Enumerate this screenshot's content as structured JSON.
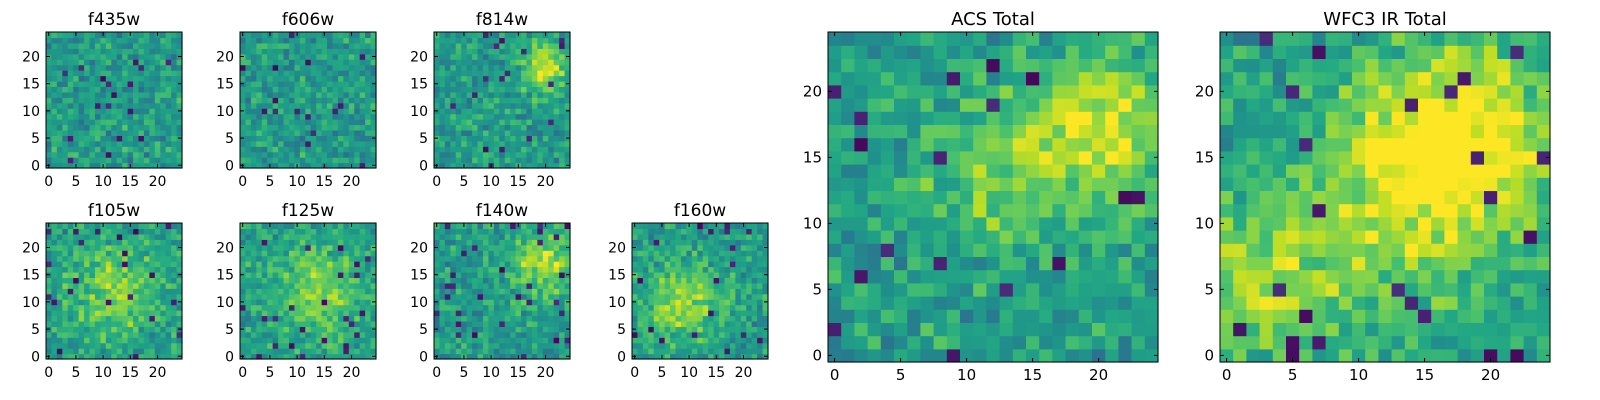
{
  "colormap": "viridis",
  "colors": {
    "frame": "#000000",
    "background": "#ffffff"
  },
  "chart_data": [
    {
      "type": "heatmap",
      "title": "f435w",
      "grid": [
        25,
        25
      ],
      "xticks": [
        "0",
        "5",
        "10",
        "15",
        "20"
      ],
      "yticks": [
        "0",
        "5",
        "10",
        "15",
        "20"
      ],
      "xlim": [
        0,
        25
      ],
      "ylim": [
        0,
        25
      ],
      "seed": 11,
      "features": []
    },
    {
      "type": "heatmap",
      "title": "f606w",
      "grid": [
        25,
        25
      ],
      "xticks": [
        "0",
        "5",
        "10",
        "15",
        "20"
      ],
      "yticks": [
        "0",
        "5",
        "10",
        "15",
        "20"
      ],
      "xlim": [
        0,
        25
      ],
      "ylim": [
        0,
        25
      ],
      "seed": 23,
      "features": []
    },
    {
      "type": "heatmap",
      "title": "f814w",
      "grid": [
        25,
        25
      ],
      "xticks": [
        "0",
        "5",
        "10",
        "15",
        "20"
      ],
      "yticks": [
        "0",
        "5",
        "10",
        "15",
        "20"
      ],
      "xlim": [
        0,
        25
      ],
      "ylim": [
        0,
        25
      ],
      "seed": 37,
      "features": [
        {
          "x": 20,
          "y": 18,
          "amp": 0.4,
          "r": 3
        }
      ]
    },
    {
      "type": "heatmap",
      "title": "f105w",
      "grid": [
        25,
        25
      ],
      "xticks": [
        "0",
        "5",
        "10",
        "15",
        "20"
      ],
      "yticks": [
        "0",
        "5",
        "10",
        "15",
        "20"
      ],
      "xlim": [
        0,
        25
      ],
      "ylim": [
        0,
        25
      ],
      "seed": 41,
      "features": [
        {
          "x": 12,
          "y": 12,
          "amp": 0.25,
          "r": 6
        }
      ]
    },
    {
      "type": "heatmap",
      "title": "f125w",
      "grid": [
        25,
        25
      ],
      "xticks": [
        "0",
        "5",
        "10",
        "15",
        "20"
      ],
      "yticks": [
        "0",
        "5",
        "10",
        "15",
        "20"
      ],
      "xlim": [
        0,
        25
      ],
      "ylim": [
        0,
        25
      ],
      "seed": 53,
      "features": [
        {
          "x": 14,
          "y": 12,
          "amp": 0.25,
          "r": 6
        }
      ]
    },
    {
      "type": "heatmap",
      "title": "f140w",
      "grid": [
        25,
        25
      ],
      "xticks": [
        "0",
        "5",
        "10",
        "15",
        "20"
      ],
      "yticks": [
        "0",
        "5",
        "10",
        "15",
        "20"
      ],
      "xlim": [
        0,
        25
      ],
      "ylim": [
        0,
        25
      ],
      "seed": 67,
      "features": [
        {
          "x": 20,
          "y": 17,
          "amp": 0.35,
          "r": 4
        }
      ]
    },
    {
      "type": "heatmap",
      "title": "f160w",
      "grid": [
        25,
        25
      ],
      "xticks": [
        "0",
        "5",
        "10",
        "15",
        "20"
      ],
      "yticks": [
        "0",
        "5",
        "10",
        "15",
        "20"
      ],
      "xlim": [
        0,
        25
      ],
      "ylim": [
        0,
        25
      ],
      "seed": 79,
      "features": [
        {
          "x": 9,
          "y": 10,
          "amp": 0.3,
          "r": 5
        }
      ]
    },
    {
      "type": "heatmap",
      "title": "ACS Total",
      "grid": [
        25,
        25
      ],
      "xticks": [
        "0",
        "5",
        "10",
        "15",
        "20"
      ],
      "yticks": [
        "0",
        "5",
        "10",
        "15",
        "20"
      ],
      "xlim": [
        0,
        25
      ],
      "ylim": [
        0,
        25
      ],
      "seed": 97,
      "features": [
        {
          "x": 20,
          "y": 17,
          "amp": 0.4,
          "r": 4
        },
        {
          "x": 12,
          "y": 13,
          "amp": 0.2,
          "r": 4
        }
      ]
    },
    {
      "type": "heatmap",
      "title": "WFC3 IR Total",
      "grid": [
        25,
        25
      ],
      "xticks": [
        "0",
        "5",
        "10",
        "15",
        "20"
      ],
      "yticks": [
        "0",
        "5",
        "10",
        "15",
        "20"
      ],
      "xlim": [
        0,
        25
      ],
      "ylim": [
        0,
        25
      ],
      "seed": 113,
      "features": [
        {
          "x": 18,
          "y": 17,
          "amp": 0.4,
          "r": 5
        },
        {
          "x": 13,
          "y": 12,
          "amp": 0.3,
          "r": 6
        },
        {
          "x": 2,
          "y": 5,
          "amp": 0.3,
          "r": 4
        }
      ]
    }
  ]
}
